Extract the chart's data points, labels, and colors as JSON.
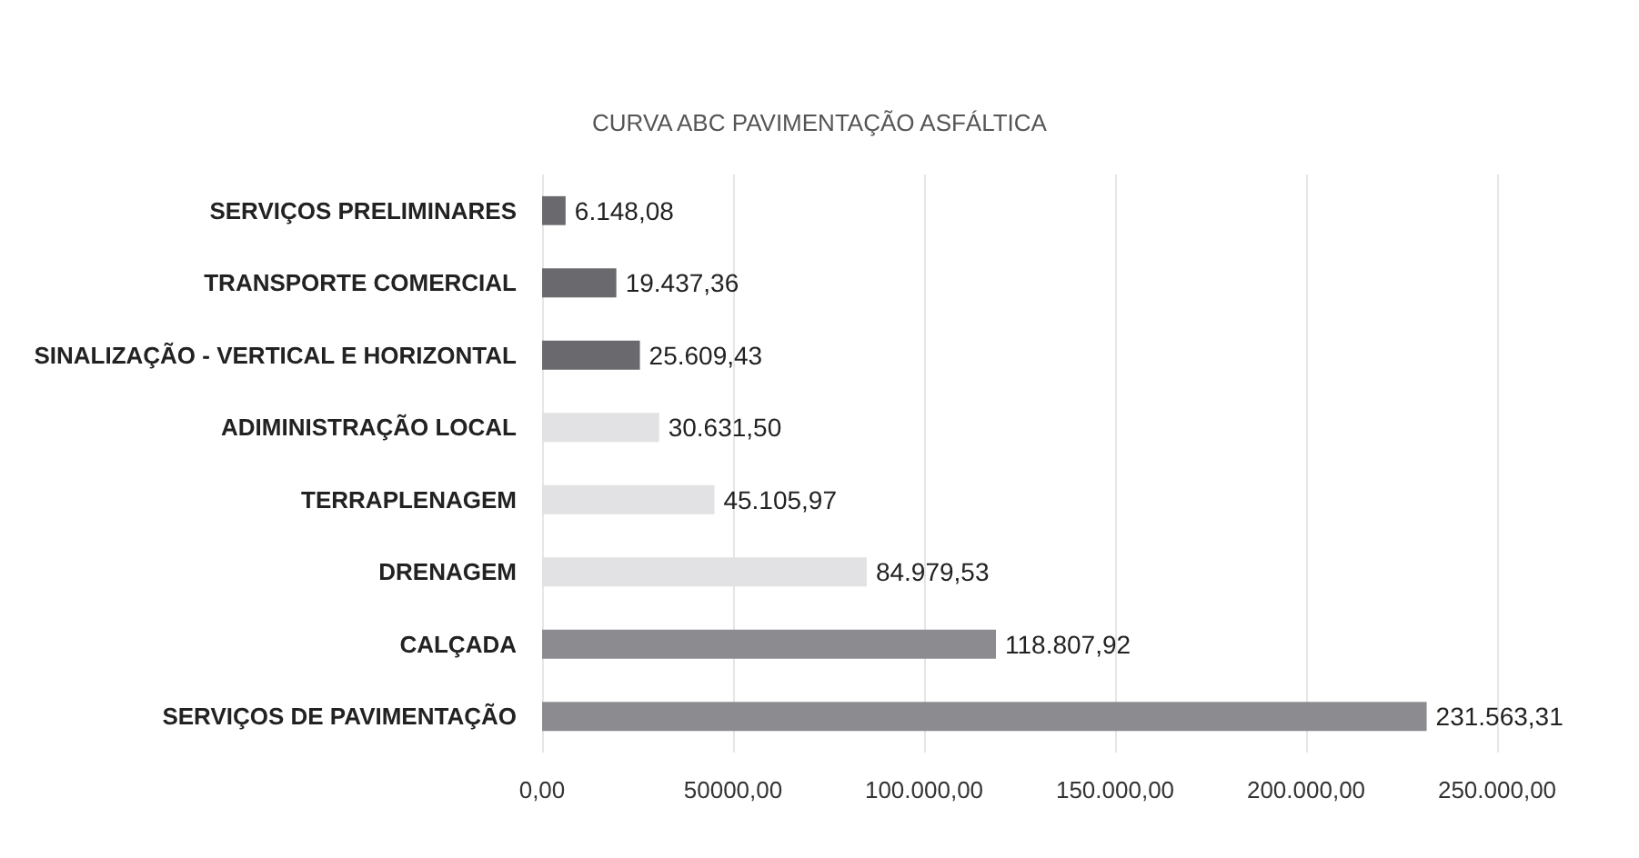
{
  "chart_data": {
    "type": "bar",
    "orientation": "horizontal",
    "title": "CURVA ABC PAVIMENTAÇÃO ASFÁLTICA",
    "categories": [
      "SERVIÇOS PRELIMINARES",
      "TRANSPORTE COMERCIAL",
      "SINALIZAÇÃO - VERTICAL E HORIZONTAL",
      "ADIMINISTRAÇÃO LOCAL",
      "TERRAPLENAGEM",
      "DRENAGEM",
      "CALÇADA",
      "SERVIÇOS DE PAVIMENTAÇÃO"
    ],
    "values": [
      6148.08,
      19437.36,
      25609.43,
      30631.5,
      45105.97,
      84979.53,
      118807.92,
      231563.31
    ],
    "colors": [
      "#6a6a6e",
      "#6a6a6e",
      "#6a6a6e",
      "#e2e2e4",
      "#e2e2e4",
      "#e2e2e4",
      "#8c8c90",
      "#8c8c90"
    ],
    "value_labels": [
      "6.148,08",
      "19.437,36",
      "25.609,43",
      "30.631,50",
      "45.105,97",
      "84.979,53",
      "118.807,92",
      "231.563,31"
    ],
    "xlim": [
      0,
      250000
    ],
    "xticks": [
      {
        "value": 0,
        "label": "0,00"
      },
      {
        "value": 50000,
        "label": "50000,00"
      },
      {
        "value": 100000,
        "label": "100.000,00"
      },
      {
        "value": 150000,
        "label": "150.000,00"
      },
      {
        "value": 200000,
        "label": "200.000,00"
      },
      {
        "value": 250000,
        "label": "250.000,00"
      }
    ],
    "grid": "x"
  }
}
